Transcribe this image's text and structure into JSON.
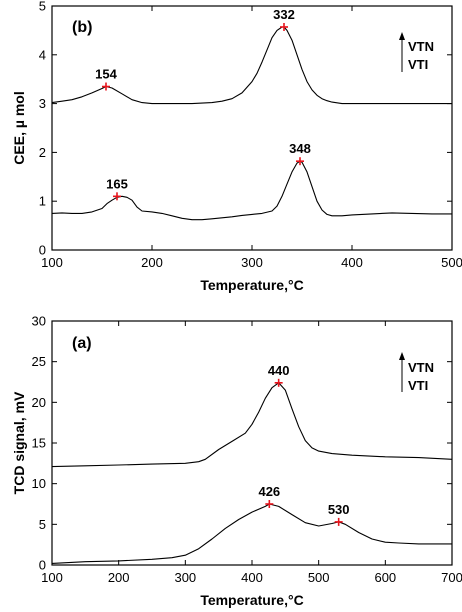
{
  "chart_data": [
    {
      "type": "line",
      "panel_label": "(b)",
      "xlabel": "Temperature,°C",
      "ylabel": "CEE, µ mol",
      "xlim": [
        100,
        500
      ],
      "ylim": [
        0,
        5
      ],
      "xticks": [
        100,
        200,
        300,
        400,
        500
      ],
      "yticks": [
        0,
        1,
        2,
        3,
        4,
        5
      ],
      "legend": {
        "entries": [
          "VTN",
          "VTI"
        ],
        "placement": "top-right",
        "arrow": "up"
      },
      "series": [
        {
          "name": "VTN",
          "x": [
            100,
            110,
            120,
            130,
            140,
            150,
            154,
            160,
            170,
            180,
            190,
            200,
            220,
            240,
            260,
            270,
            280,
            290,
            300,
            305,
            310,
            315,
            320,
            325,
            330,
            332,
            335,
            340,
            345,
            350,
            355,
            360,
            365,
            370,
            375,
            380,
            390,
            400,
            420,
            440,
            460,
            480,
            500
          ],
          "y": [
            3.02,
            3.05,
            3.08,
            3.14,
            3.22,
            3.31,
            3.35,
            3.32,
            3.2,
            3.08,
            3.02,
            3.0,
            3.0,
            3.0,
            3.02,
            3.05,
            3.1,
            3.22,
            3.45,
            3.62,
            3.85,
            4.1,
            4.35,
            4.5,
            4.57,
            4.57,
            4.5,
            4.3,
            4.0,
            3.7,
            3.45,
            3.28,
            3.17,
            3.1,
            3.06,
            3.03,
            3.0,
            3.0,
            3.0,
            3.0,
            3.0,
            3.0,
            3.0
          ]
        },
        {
          "name": "VTI",
          "x": [
            100,
            110,
            120,
            130,
            140,
            150,
            155,
            160,
            165,
            170,
            175,
            180,
            185,
            190,
            200,
            210,
            220,
            230,
            240,
            250,
            260,
            270,
            280,
            290,
            300,
            310,
            320,
            325,
            330,
            335,
            340,
            345,
            348,
            350,
            355,
            360,
            365,
            370,
            375,
            380,
            390,
            400,
            420,
            440,
            460,
            480,
            500
          ],
          "y": [
            0.75,
            0.76,
            0.75,
            0.75,
            0.78,
            0.85,
            0.95,
            1.02,
            1.08,
            1.1,
            1.08,
            1.02,
            0.88,
            0.8,
            0.78,
            0.75,
            0.7,
            0.65,
            0.62,
            0.62,
            0.64,
            0.66,
            0.68,
            0.71,
            0.73,
            0.75,
            0.8,
            0.9,
            1.1,
            1.35,
            1.6,
            1.78,
            1.82,
            1.8,
            1.6,
            1.3,
            1.0,
            0.82,
            0.73,
            0.7,
            0.7,
            0.72,
            0.74,
            0.76,
            0.75,
            0.74,
            0.74
          ]
        }
      ],
      "peak_markers": [
        {
          "x": 154,
          "y": 3.35,
          "label": "154"
        },
        {
          "x": 332,
          "y": 4.57,
          "label": "332"
        },
        {
          "x": 165,
          "y": 1.1,
          "label": "165"
        },
        {
          "x": 348,
          "y": 1.82,
          "label": "348"
        }
      ],
      "marker_color": "#e8141c"
    },
    {
      "type": "line",
      "panel_label": "(a)",
      "xlabel": "Temperature,°C",
      "ylabel": "TCD signal, mV",
      "xlim": [
        100,
        700
      ],
      "ylim": [
        0,
        30
      ],
      "xticks": [
        100,
        200,
        300,
        400,
        500,
        600,
        700
      ],
      "yticks": [
        0,
        5,
        10,
        15,
        20,
        25,
        30
      ],
      "legend": {
        "entries": [
          "VTN",
          "VTI"
        ],
        "placement": "top-right",
        "arrow": "up"
      },
      "series": [
        {
          "name": "VTN",
          "x": [
            100,
            150,
            200,
            250,
            300,
            320,
            330,
            350,
            370,
            390,
            400,
            410,
            420,
            430,
            440,
            450,
            460,
            470,
            480,
            490,
            500,
            520,
            550,
            600,
            650,
            700
          ],
          "y": [
            12.1,
            12.2,
            12.3,
            12.4,
            12.5,
            12.7,
            13.0,
            14.2,
            15.2,
            16.2,
            17.3,
            18.8,
            20.5,
            21.8,
            22.4,
            21.5,
            19.2,
            17.0,
            15.3,
            14.4,
            14.0,
            13.7,
            13.5,
            13.3,
            13.2,
            13.0
          ]
        },
        {
          "name": "VTI",
          "x": [
            100,
            150,
            200,
            250,
            280,
            300,
            320,
            340,
            360,
            380,
            400,
            420,
            426,
            440,
            460,
            480,
            500,
            520,
            530,
            540,
            560,
            580,
            600,
            620,
            650,
            700
          ],
          "y": [
            0.2,
            0.4,
            0.5,
            0.7,
            0.9,
            1.2,
            2.0,
            3.2,
            4.5,
            5.6,
            6.5,
            7.2,
            7.5,
            7.2,
            6.2,
            5.2,
            4.8,
            5.1,
            5.3,
            5.0,
            4.0,
            3.2,
            2.8,
            2.7,
            2.6,
            2.6
          ]
        }
      ],
      "peak_markers": [
        {
          "x": 440,
          "y": 22.4,
          "label": "440"
        },
        {
          "x": 426,
          "y": 7.5,
          "label": "426"
        },
        {
          "x": 530,
          "y": 5.3,
          "label": "530"
        }
      ],
      "marker_color": "#e8141c"
    }
  ]
}
